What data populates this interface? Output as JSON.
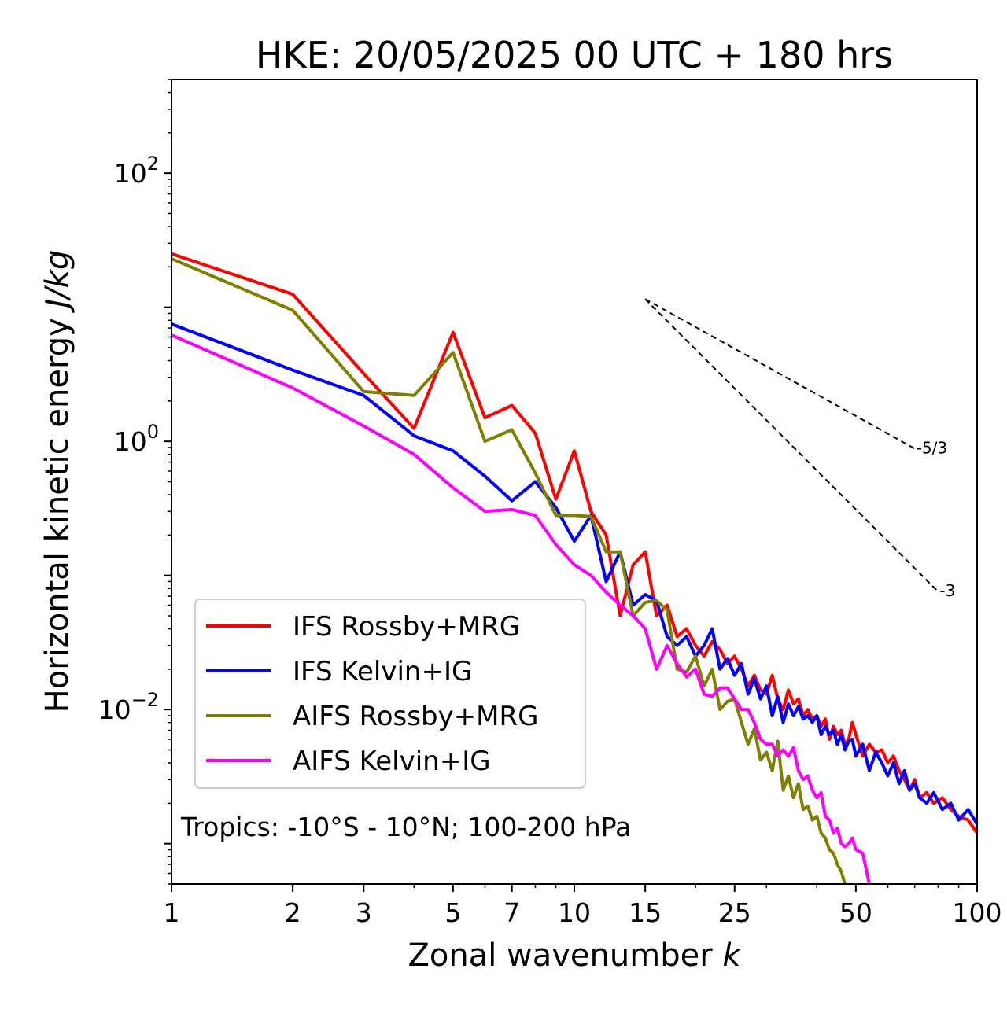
{
  "chart_data": {
    "type": "line",
    "title": "HKE: 20/05/2025 00 UTC + 180 hrs",
    "xlabel_prefix": "Zonal wavenumber ",
    "xlabel_var": "k",
    "ylabel_prefix": "Horizontal kinetic energy ",
    "ylabel_unit": "J/kg",
    "xscale": "log",
    "yscale": "log",
    "xlim": [
      1,
      100
    ],
    "ylim": [
      0.0005,
      500
    ],
    "xticks": [
      1,
      2,
      3,
      5,
      7,
      10,
      15,
      25,
      50,
      100
    ],
    "xtick_labels": [
      "1",
      "2",
      "3",
      "5",
      "7",
      "10",
      "15",
      "25",
      "50",
      "100"
    ],
    "yticks": [
      {
        "value": 100,
        "base": "10",
        "exp": "2"
      },
      {
        "value": 1,
        "base": "10",
        "exp": "0"
      },
      {
        "value": 0.01,
        "base": "10",
        "exp": "−2"
      }
    ],
    "legend_position": "lower-left",
    "annotation": "Tropics: -10°S - 10°N; 100-200 hPa",
    "reference_lines": [
      {
        "label": "-5/3",
        "slope": -1.6667,
        "x_start": 15,
        "y_start": 11.5,
        "x_end": 70
      },
      {
        "label": "-3",
        "slope": -3,
        "x_start": 15,
        "y_start": 11.5,
        "x_end": 80
      }
    ],
    "series": [
      {
        "name": "IFS Rossby+MRG",
        "color": "#ff0000",
        "points": [
          [
            1,
            25
          ],
          [
            2,
            12.5
          ],
          [
            3,
            3.2
          ],
          [
            4,
            1.25
          ],
          [
            5,
            6.5
          ],
          [
            6,
            1.5
          ],
          [
            7,
            1.85
          ],
          [
            8,
            1.15
          ],
          [
            9,
            0.37
          ],
          [
            10,
            0.85
          ],
          [
            11,
            0.3
          ],
          [
            12,
            0.2
          ],
          [
            13,
            0.05
          ],
          [
            14,
            0.12
          ],
          [
            15,
            0.15
          ],
          [
            16,
            0.05
          ],
          [
            17,
            0.06
          ],
          [
            18,
            0.035
          ],
          [
            19,
            0.04
          ],
          [
            20,
            0.03
          ],
          [
            21,
            0.025
          ],
          [
            22,
            0.032
          ],
          [
            23,
            0.028
          ],
          [
            24,
            0.022
          ],
          [
            25,
            0.025
          ],
          [
            26,
            0.02
          ],
          [
            27,
            0.015
          ],
          [
            28,
            0.018
          ],
          [
            29,
            0.014
          ],
          [
            30,
            0.013
          ],
          [
            31,
            0.018
          ],
          [
            32,
            0.012
          ],
          [
            33,
            0.01
          ],
          [
            34,
            0.014
          ],
          [
            35,
            0.011
          ],
          [
            36,
            0.012
          ],
          [
            37,
            0.009
          ],
          [
            38,
            0.01
          ],
          [
            39,
            0.0085
          ],
          [
            40,
            0.009
          ],
          [
            41,
            0.0075
          ],
          [
            42,
            0.0085
          ],
          [
            43,
            0.006
          ],
          [
            44,
            0.0075
          ],
          [
            45,
            0.0065
          ],
          [
            46,
            0.007
          ],
          [
            47,
            0.0055
          ],
          [
            48,
            0.006
          ],
          [
            49,
            0.008
          ],
          [
            50,
            0.0065
          ],
          [
            52,
            0.0045
          ],
          [
            54,
            0.0055
          ],
          [
            56,
            0.0048
          ],
          [
            58,
            0.005
          ],
          [
            60,
            0.004
          ],
          [
            62,
            0.0045
          ],
          [
            64,
            0.0035
          ],
          [
            66,
            0.003
          ],
          [
            68,
            0.0025
          ],
          [
            70,
            0.003
          ],
          [
            72,
            0.0022
          ],
          [
            75,
            0.0024
          ],
          [
            78,
            0.002
          ],
          [
            82,
            0.0022
          ],
          [
            86,
            0.0018
          ],
          [
            90,
            0.0016
          ],
          [
            95,
            0.0015
          ],
          [
            100,
            0.0012
          ]
        ]
      },
      {
        "name": "IFS Kelvin+IG",
        "color": "#0000ff",
        "points": [
          [
            1,
            7.5
          ],
          [
            2,
            3.4
          ],
          [
            3,
            2.2
          ],
          [
            4,
            1.1
          ],
          [
            5,
            0.85
          ],
          [
            6,
            0.55
          ],
          [
            7,
            0.36
          ],
          [
            8,
            0.5
          ],
          [
            9,
            0.32
          ],
          [
            10,
            0.18
          ],
          [
            11,
            0.28
          ],
          [
            12,
            0.09
          ],
          [
            13,
            0.15
          ],
          [
            14,
            0.06
          ],
          [
            15,
            0.072
          ],
          [
            16,
            0.065
          ],
          [
            17,
            0.035
          ],
          [
            18,
            0.03
          ],
          [
            19,
            0.035
          ],
          [
            20,
            0.025
          ],
          [
            21,
            0.03
          ],
          [
            22,
            0.04
          ],
          [
            23,
            0.02
          ],
          [
            24,
            0.024
          ],
          [
            25,
            0.018
          ],
          [
            26,
            0.022
          ],
          [
            27,
            0.013
          ],
          [
            28,
            0.017
          ],
          [
            29,
            0.012
          ],
          [
            30,
            0.015
          ],
          [
            31,
            0.009
          ],
          [
            32,
            0.0125
          ],
          [
            33,
            0.008
          ],
          [
            34,
            0.011
          ],
          [
            35,
            0.009
          ],
          [
            36,
            0.0105
          ],
          [
            37,
            0.0085
          ],
          [
            38,
            0.009
          ],
          [
            39,
            0.008
          ],
          [
            40,
            0.009
          ],
          [
            41,
            0.0065
          ],
          [
            42,
            0.0075
          ],
          [
            43,
            0.0065
          ],
          [
            44,
            0.007
          ],
          [
            45,
            0.0055
          ],
          [
            46,
            0.0065
          ],
          [
            47,
            0.005
          ],
          [
            48,
            0.0058
          ],
          [
            49,
            0.006
          ],
          [
            50,
            0.0045
          ],
          [
            52,
            0.0055
          ],
          [
            54,
            0.0035
          ],
          [
            56,
            0.0048
          ],
          [
            58,
            0.004
          ],
          [
            60,
            0.0032
          ],
          [
            62,
            0.004
          ],
          [
            64,
            0.0028
          ],
          [
            66,
            0.0035
          ],
          [
            68,
            0.0025
          ],
          [
            70,
            0.0028
          ],
          [
            72,
            0.0022
          ],
          [
            75,
            0.002
          ],
          [
            78,
            0.0024
          ],
          [
            82,
            0.0018
          ],
          [
            86,
            0.002
          ],
          [
            90,
            0.0015
          ],
          [
            95,
            0.0018
          ],
          [
            100,
            0.0014
          ]
        ]
      },
      {
        "name": "AIFS Rossby+MRG",
        "color": "#808000",
        "points": [
          [
            1,
            23
          ],
          [
            2,
            9.5
          ],
          [
            3,
            2.35
          ],
          [
            4,
            2.2
          ],
          [
            5,
            4.6
          ],
          [
            6,
            1.0
          ],
          [
            7,
            1.22
          ],
          [
            8,
            0.58
          ],
          [
            9,
            0.28
          ],
          [
            10,
            0.28
          ],
          [
            11,
            0.275
          ],
          [
            12,
            0.15
          ],
          [
            13,
            0.15
          ],
          [
            14,
            0.05
          ],
          [
            15,
            0.063
          ],
          [
            16,
            0.065
          ],
          [
            17,
            0.055
          ],
          [
            18,
            0.02
          ],
          [
            19,
            0.019
          ],
          [
            20,
            0.025
          ],
          [
            21,
            0.015
          ],
          [
            22,
            0.02
          ],
          [
            23,
            0.01
          ],
          [
            24,
            0.0115
          ],
          [
            25,
            0.012
          ],
          [
            26,
            0.008
          ],
          [
            27,
            0.0055
          ],
          [
            28,
            0.0072
          ],
          [
            29,
            0.0042
          ],
          [
            30,
            0.0048
          ],
          [
            31,
            0.0035
          ],
          [
            32,
            0.0058
          ],
          [
            33,
            0.0025
          ],
          [
            34,
            0.0032
          ],
          [
            35,
            0.0022
          ],
          [
            36,
            0.0028
          ],
          [
            37,
            0.0018
          ],
          [
            38,
            0.0019
          ],
          [
            39,
            0.0015
          ],
          [
            40,
            0.0016
          ],
          [
            41,
            0.0012
          ],
          [
            42,
            0.0011
          ],
          [
            43,
            0.0009
          ],
          [
            44,
            0.00085
          ],
          [
            45,
            0.0007
          ],
          [
            46,
            0.00062
          ],
          [
            47,
            0.0005
          ]
        ]
      },
      {
        "name": "AIFS Kelvin+IG",
        "color": "#ff00ff",
        "points": [
          [
            1,
            6.2
          ],
          [
            2,
            2.5
          ],
          [
            3,
            1.3
          ],
          [
            4,
            0.8
          ],
          [
            5,
            0.45
          ],
          [
            6,
            0.3
          ],
          [
            7,
            0.31
          ],
          [
            8,
            0.28
          ],
          [
            9,
            0.17
          ],
          [
            10,
            0.12
          ],
          [
            11,
            0.1
          ],
          [
            12,
            0.075
          ],
          [
            13,
            0.06
          ],
          [
            14,
            0.05
          ],
          [
            15,
            0.04
          ],
          [
            16,
            0.02
          ],
          [
            17,
            0.03
          ],
          [
            18,
            0.022
          ],
          [
            19,
            0.0175
          ],
          [
            20,
            0.02
          ],
          [
            21,
            0.013
          ],
          [
            22,
            0.0125
          ],
          [
            23,
            0.0145
          ],
          [
            24,
            0.0145
          ],
          [
            25,
            0.012
          ],
          [
            26,
            0.01
          ],
          [
            27,
            0.01
          ],
          [
            28,
            0.008
          ],
          [
            29,
            0.006
          ],
          [
            30,
            0.0055
          ],
          [
            31,
            0.0055
          ],
          [
            32,
            0.0045
          ],
          [
            33,
            0.005
          ],
          [
            34,
            0.0045
          ],
          [
            35,
            0.0052
          ],
          [
            36,
            0.0035
          ],
          [
            37,
            0.003
          ],
          [
            38,
            0.0032
          ],
          [
            39,
            0.0025
          ],
          [
            40,
            0.0022
          ],
          [
            41,
            0.0024
          ],
          [
            42,
            0.0016
          ],
          [
            43,
            0.0015
          ],
          [
            44,
            0.0012
          ],
          [
            45,
            0.0013
          ],
          [
            46,
            0.001
          ],
          [
            47,
            0.00095
          ],
          [
            48,
            0.001
          ],
          [
            49,
            0.0011
          ],
          [
            50,
            0.0009
          ],
          [
            52,
            0.00085
          ],
          [
            54,
            0.0005
          ]
        ]
      }
    ]
  }
}
